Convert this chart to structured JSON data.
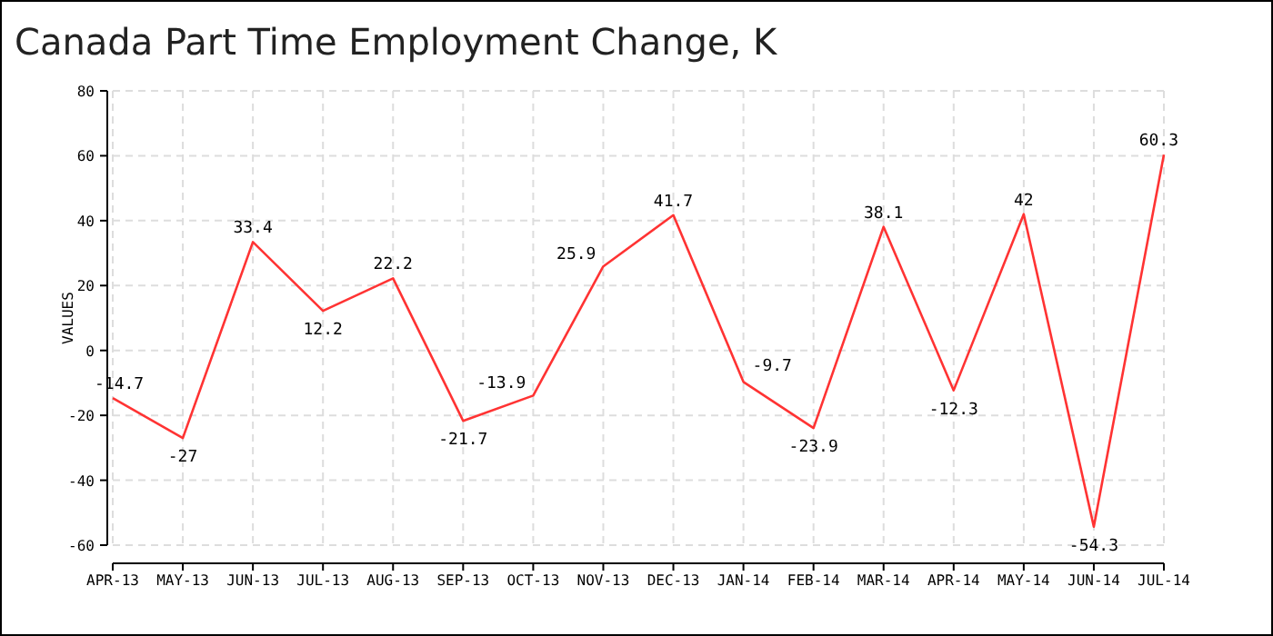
{
  "chart_data": {
    "type": "line",
    "title": "Canada Part Time Employment Change, K",
    "ylabel": "VALUES",
    "categories": [
      "APR-13",
      "MAY-13",
      "JUN-13",
      "JUL-13",
      "AUG-13",
      "SEP-13",
      "OCT-13",
      "NOV-13",
      "DEC-13",
      "JAN-14",
      "FEB-14",
      "MAR-14",
      "APR-14",
      "MAY-14",
      "JUN-14",
      "JUL-14"
    ],
    "series": [
      {
        "color": "#ff3333",
        "values": [
          -14.7,
          -27,
          33.4,
          12.2,
          22.2,
          -21.7,
          -13.9,
          25.9,
          41.7,
          -9.7,
          -23.9,
          38.1,
          -12.3,
          42,
          -54.3,
          60.3
        ]
      }
    ],
    "ylim": [
      -60,
      80
    ],
    "yticks": [
      -60,
      -40,
      -20,
      0,
      20,
      40,
      60,
      80
    ],
    "grid": true,
    "data_labels": true,
    "marker": "none",
    "line_style": "solid"
  }
}
